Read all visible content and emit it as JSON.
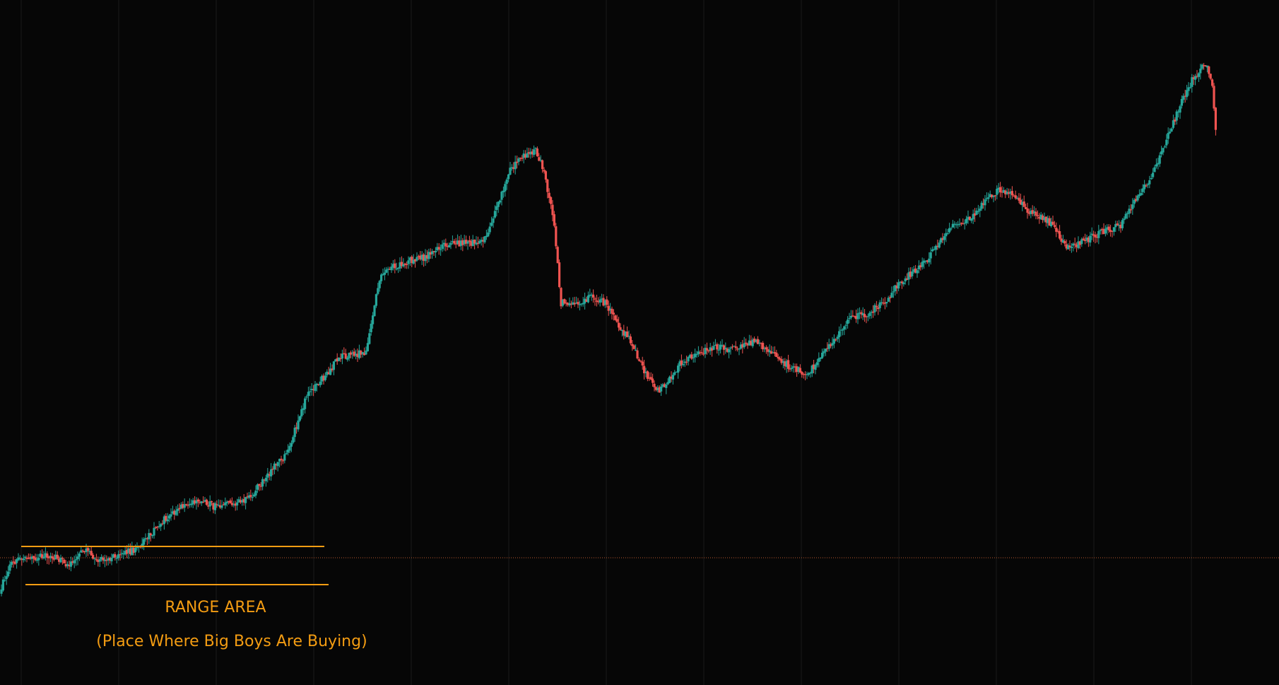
{
  "chart_data": {
    "type": "candlestick",
    "title": "",
    "xlabel": "",
    "ylabel": "",
    "grid": true,
    "legend": "none",
    "colors": {
      "background": "#060606",
      "grid": "#1a1a1a",
      "up": "#26a69a",
      "down": "#ef5350",
      "annotation": "#f39c12",
      "price_line": "#b5562d"
    },
    "ylim": [
      0,
      969
    ],
    "current_price": 180,
    "range_area": {
      "top": 196,
      "bottom": 142,
      "label": "RANGE AREA",
      "caption": "(Place Where Big Boys Are Buying)"
    },
    "waypoints": [
      [
        0,
        140
      ],
      [
        5,
        168
      ],
      [
        12,
        182
      ],
      [
        20,
        180
      ],
      [
        30,
        183
      ],
      [
        40,
        170
      ],
      [
        45,
        185
      ],
      [
        50,
        190
      ],
      [
        55,
        178
      ],
      [
        60,
        176
      ],
      [
        70,
        185
      ],
      [
        80,
        192
      ],
      [
        92,
        225
      ],
      [
        100,
        243
      ],
      [
        108,
        255
      ],
      [
        115,
        258
      ],
      [
        120,
        260
      ],
      [
        125,
        253
      ],
      [
        130,
        250
      ],
      [
        135,
        258
      ],
      [
        140,
        258
      ],
      [
        148,
        270
      ],
      [
        160,
        306
      ],
      [
        168,
        325
      ],
      [
        180,
        410
      ],
      [
        190,
        435
      ],
      [
        200,
        465
      ],
      [
        215,
        470
      ],
      [
        223,
        575
      ],
      [
        230,
        590
      ],
      [
        240,
        600
      ],
      [
        250,
        605
      ],
      [
        260,
        620
      ],
      [
        268,
        625
      ],
      [
        275,
        625
      ],
      [
        285,
        630
      ],
      [
        290,
        660
      ],
      [
        300,
        728
      ],
      [
        308,
        750
      ],
      [
        315,
        756
      ],
      [
        320,
        728
      ],
      [
        326,
        650
      ],
      [
        330,
        540
      ],
      [
        338,
        540
      ],
      [
        348,
        548
      ],
      [
        356,
        540
      ],
      [
        362,
        515
      ],
      [
        370,
        490
      ],
      [
        378,
        450
      ],
      [
        386,
        415
      ],
      [
        392,
        425
      ],
      [
        400,
        455
      ],
      [
        410,
        468
      ],
      [
        420,
        478
      ],
      [
        430,
        475
      ],
      [
        437,
        480
      ],
      [
        445,
        485
      ],
      [
        455,
        470
      ],
      [
        465,
        450
      ],
      [
        475,
        440
      ],
      [
        485,
        470
      ],
      [
        492,
        490
      ],
      [
        500,
        520
      ],
      [
        510,
        525
      ],
      [
        520,
        540
      ],
      [
        530,
        570
      ],
      [
        545,
        600
      ],
      [
        560,
        650
      ],
      [
        572,
        660
      ],
      [
        582,
        690
      ],
      [
        588,
        700
      ],
      [
        595,
        698
      ],
      [
        605,
        670
      ],
      [
        620,
        652
      ],
      [
        627,
        620
      ],
      [
        632,
        622
      ],
      [
        640,
        630
      ],
      [
        648,
        640
      ],
      [
        660,
        650
      ],
      [
        668,
        685
      ],
      [
        678,
        720
      ],
      [
        690,
        790
      ],
      [
        697,
        830
      ],
      [
        703,
        860
      ],
      [
        710,
        880
      ],
      [
        714,
        845
      ],
      [
        716,
        790
      ]
    ]
  }
}
